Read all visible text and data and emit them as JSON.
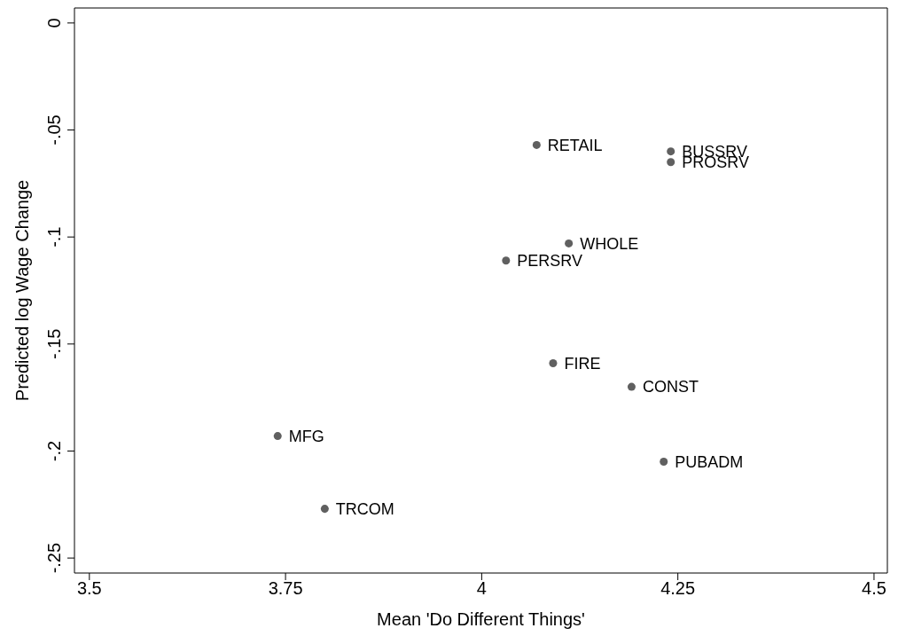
{
  "chart_data": {
    "type": "scatter",
    "xlabel": "Mean 'Do Different Things'",
    "ylabel": "Predicted log Wage Change",
    "x": [
      4.07,
      4.241,
      4.241,
      4.111,
      4.031,
      4.091,
      4.191,
      3.74,
      4.232,
      3.8
    ],
    "values": [
      -0.057,
      -0.06,
      -0.065,
      -0.103,
      -0.111,
      -0.159,
      -0.17,
      -0.193,
      -0.205,
      -0.227
    ],
    "value_labels": [
      "RETAIL",
      "BUSSRV",
      "PROSRV",
      "WHOLE",
      "PERSRV",
      "FIRE",
      "CONST",
      "MFG",
      "PUBADM",
      "TRCOM"
    ],
    "color": "#606060",
    "marker": "circle",
    "xlim": [
      3.481,
      4.517
    ],
    "ylim": [
      -0.257,
      0.007
    ],
    "xticks": [
      3.5,
      3.75,
      4,
      4.25,
      4.5
    ],
    "yticks": [
      {
        "value": 0,
        "label": "0"
      },
      {
        "value": -0.05,
        "label": "-.05"
      },
      {
        "value": -0.1,
        "label": "-.1"
      },
      {
        "value": -0.15,
        "label": "-.15"
      },
      {
        "value": -0.2,
        "label": "-.2"
      },
      {
        "value": -0.25,
        "label": "-.25"
      }
    ]
  }
}
